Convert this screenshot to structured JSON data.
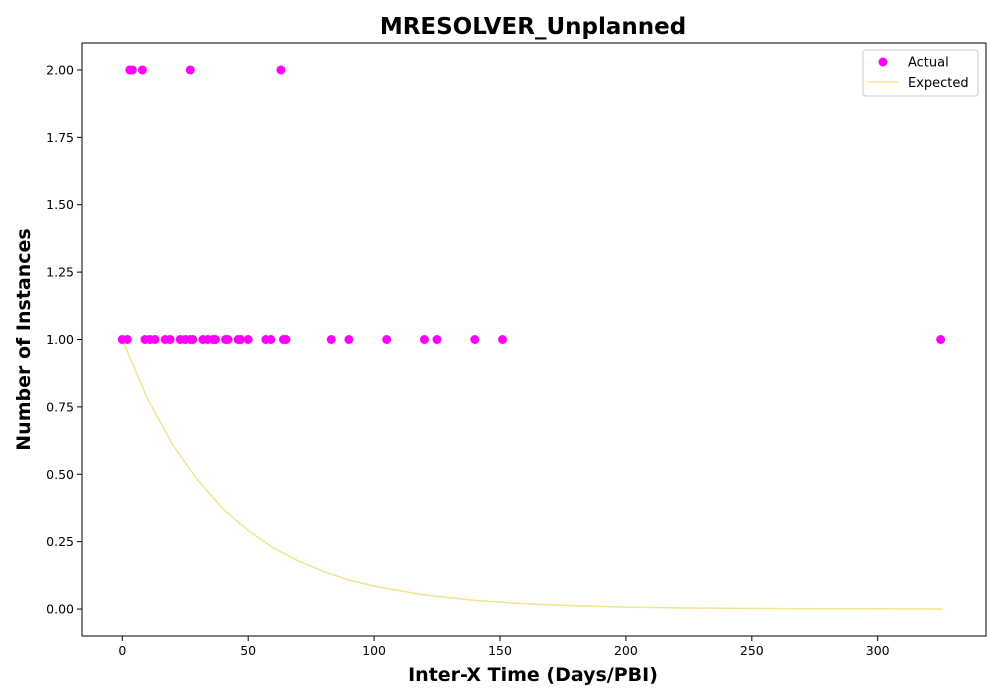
{
  "chart_data": {
    "type": "scatter",
    "title": "MRESOLVER_Unplanned",
    "xlabel": "Inter-X Time (Days/PBI)",
    "ylabel": "Number of Instances",
    "xlim": [
      -16,
      343
    ],
    "ylim": [
      -0.1,
      2.1
    ],
    "x_ticks": [
      0,
      50,
      100,
      150,
      200,
      250,
      300
    ],
    "y_ticks": [
      0.0,
      0.25,
      0.5,
      0.75,
      1.0,
      1.25,
      1.5,
      1.75,
      2.0
    ],
    "x_tick_labels": [
      "0",
      "50",
      "100",
      "150",
      "200",
      "250",
      "300"
    ],
    "y_tick_labels": [
      "0.00",
      "0.25",
      "0.50",
      "0.75",
      "1.00",
      "1.25",
      "1.50",
      "1.75",
      "2.00"
    ],
    "grid": false,
    "legend_position": "top-right",
    "series": [
      {
        "name": "Actual",
        "kind": "scatter",
        "color": "#ff00ff",
        "points": [
          [
            3,
            2
          ],
          [
            4,
            2
          ],
          [
            8,
            2
          ],
          [
            27,
            2
          ],
          [
            63,
            2
          ],
          [
            0,
            1
          ],
          [
            2,
            1
          ],
          [
            9,
            1
          ],
          [
            11,
            1
          ],
          [
            13,
            1
          ],
          [
            17,
            1
          ],
          [
            19,
            1
          ],
          [
            23,
            1
          ],
          [
            25,
            1
          ],
          [
            27,
            1
          ],
          [
            28,
            1
          ],
          [
            32,
            1
          ],
          [
            34,
            1
          ],
          [
            36,
            1
          ],
          [
            37,
            1
          ],
          [
            41,
            1
          ],
          [
            42,
            1
          ],
          [
            46,
            1
          ],
          [
            47,
            1
          ],
          [
            50,
            1
          ],
          [
            57,
            1
          ],
          [
            59,
            1
          ],
          [
            64,
            1
          ],
          [
            65,
            1
          ],
          [
            83,
            1
          ],
          [
            90,
            1
          ],
          [
            105,
            1
          ],
          [
            120,
            1
          ],
          [
            125,
            1
          ],
          [
            140,
            1
          ],
          [
            151,
            1
          ],
          [
            325,
            1
          ]
        ]
      },
      {
        "name": "Expected",
        "kind": "line",
        "color": "#f0e68c",
        "function": "exponential decay y = exp(-x / 40.5)",
        "points": [
          [
            0,
            1.0
          ],
          [
            10,
            0.781
          ],
          [
            20,
            0.61
          ],
          [
            30,
            0.477
          ],
          [
            40,
            0.372
          ],
          [
            50,
            0.291
          ],
          [
            60,
            0.227
          ],
          [
            70,
            0.178
          ],
          [
            80,
            0.139
          ],
          [
            90,
            0.108
          ],
          [
            100,
            0.085
          ],
          [
            120,
            0.052
          ],
          [
            140,
            0.032
          ],
          [
            160,
            0.019
          ],
          [
            180,
            0.012
          ],
          [
            200,
            0.007
          ],
          [
            225,
            0.004
          ],
          [
            250,
            0.002
          ],
          [
            275,
            0.001
          ],
          [
            300,
            0.001
          ],
          [
            326,
            0.0
          ]
        ]
      }
    ]
  }
}
